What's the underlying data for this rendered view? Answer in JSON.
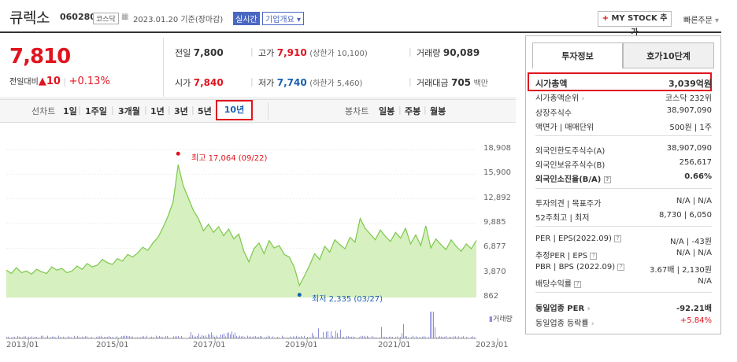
{
  "header": {
    "name": "큐렉소",
    "code": "060280",
    "market_badge": "코스닥",
    "date": "2023.01.20 기준(장마감)",
    "realtime": "실시간",
    "company_info": "기업개요",
    "mystock": "MY STOCK 추가",
    "quick_order": "빠른주문"
  },
  "quote": {
    "price": "7,810",
    "change_label": "전일대비",
    "change": "10",
    "change_pct": "+0.13%",
    "prev_label": "전일",
    "prev": "7,800",
    "open_label": "시가",
    "open": "7,840",
    "high_label": "고가",
    "high": "7,910",
    "upper_limit": "(상한가 10,100)",
    "low_label": "저가",
    "low": "7,740",
    "lower_limit": "(하한가 5,460)",
    "volume_label": "거래량",
    "volume": "90,089",
    "amount_label": "거래대금",
    "amount": "705",
    "amount_unit": "백만"
  },
  "periods": {
    "line_label": "선차트",
    "line": [
      "1일",
      "1주일",
      "3개월",
      "1년",
      "3년",
      "5년",
      "10년"
    ],
    "selected": "10년",
    "candle_label": "봉차트",
    "candle": [
      "일봉",
      "주봉",
      "월봉"
    ]
  },
  "chart_data": {
    "type": "area",
    "x_ticks": [
      "2013/01",
      "2015/01",
      "2017/01",
      "2019/01",
      "2021/01",
      "2023/01"
    ],
    "y_ticks": [
      "18,908",
      "15,900",
      "12,892",
      "9,885",
      "6,877",
      "3,870",
      "862"
    ],
    "ylim": [
      862,
      18908
    ],
    "series": [
      {
        "values": [
          4200,
          3800,
          4500,
          3900,
          4100,
          3700,
          4300,
          4000,
          3800,
          4600,
          4200,
          4400,
          3900,
          4100,
          4700,
          4300,
          5000,
          4600,
          4800,
          5500,
          5100,
          4900,
          5600,
          5300,
          6100,
          5800,
          6300,
          7000,
          6600,
          7500,
          8200,
          9400,
          10800,
          12500,
          17064,
          14500,
          13000,
          11500,
          10500,
          9000,
          9800,
          8800,
          9500,
          8400,
          9200,
          8000,
          8600,
          6500,
          5200,
          6800,
          7500,
          6200,
          7800,
          6900,
          7200,
          6100,
          5800,
          4500,
          2335,
          3500,
          4800,
          6200,
          5500,
          7100,
          6400,
          7900,
          7300,
          6800,
          8200,
          7600,
          10500,
          9300,
          8600,
          7900,
          9100,
          8300,
          7700,
          8800,
          8100,
          9300,
          7400,
          8500,
          7200,
          9600,
          6900,
          8000,
          7300,
          6700,
          7900,
          7100,
          6500,
          7400,
          6800,
          7810
        ]
      }
    ],
    "high_label": "최고 17,064 (09/22)",
    "low_label": "최저 2,335 (03/27)",
    "volume_label": "거래량",
    "line_color": "#7cc84a",
    "fill_color": "#d6f0bf",
    "volume_color": "#8e8ed8"
  },
  "panel": {
    "tab_info": "투자정보",
    "tab_quote": "호가10단계",
    "rows": {
      "market_cap_label": "시가총액",
      "market_cap": "3,039억원",
      "cap_rank_label": "시가총액순위",
      "cap_rank": "코스닥 232위",
      "shares_label": "상장주식수",
      "shares": "38,907,090",
      "par_label": "액면가 | 매매단위",
      "par": "500원 | 1주",
      "foreign_limit_label": "외국인한도주식수(A)",
      "foreign_limit": "38,907,090",
      "foreign_hold_label": "외국인보유주식수(B)",
      "foreign_hold": "256,617",
      "foreign_ratio_label": "외국인소진율(B/A)",
      "foreign_ratio": "0.66%",
      "opinion_label": "투자의견 | 목표주가",
      "opinion": "N/A | N/A",
      "range52_label": "52주최고 | 최저",
      "range52": "8,730 | 6,050",
      "per_label": "PER | EPS(2022.09)",
      "per": "N/A | -43원",
      "est_per_label": "추정PER | EPS",
      "est_per": "N/A | N/A",
      "pbr_label": "PBR | BPS (2022.09)",
      "pbr": "3.67배 | 2,130원",
      "div_label": "배당수익률",
      "div": "N/A",
      "ind_per_label": "동일업종 PER",
      "ind_per": "-92.21배",
      "ind_rate_label": "동일업종 등락률",
      "ind_rate": "+5.84%"
    }
  }
}
